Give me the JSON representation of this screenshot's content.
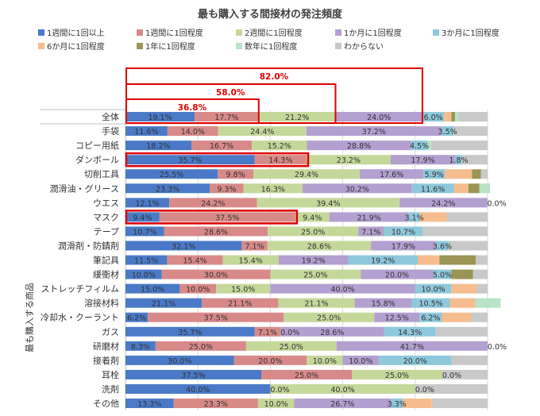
{
  "chart_data": {
    "type": "bar",
    "stacked": true,
    "orientation": "horizontal",
    "title": "最も購入する間接材の発注頻度",
    "ylabel": "最も購入する商品",
    "xlim": [
      0,
      100
    ],
    "grid": true,
    "legend_position": "top",
    "categories": [
      "全体",
      "手袋",
      "コピー用紙",
      "ダンボール",
      "切削工具",
      "潤滑油・グリース",
      "ウエス",
      "マスク",
      "テープ",
      "潤滑剤・防錆剤",
      "筆記具",
      "緩衝材",
      "ストレッチフィルム",
      "溶接材料",
      "冷却水・クーラント",
      "ガス",
      "研磨材",
      "接着剤",
      "耳栓",
      "洗剤",
      "その他"
    ],
    "series": [
      {
        "name": "1週間に1回以上",
        "color": "#4a7ac7",
        "values": [
          19.1,
          11.6,
          18.2,
          35.7,
          25.5,
          23.3,
          12.1,
          9.4,
          10.7,
          32.1,
          11.5,
          10.0,
          15.0,
          21.1,
          6.2,
          35.7,
          8.3,
          30.0,
          37.5,
          40.0,
          13.3
        ]
      },
      {
        "name": "1週間に1回程度",
        "color": "#d88a88",
        "values": [
          17.7,
          14.0,
          16.7,
          14.3,
          9.8,
          9.3,
          24.2,
          37.5,
          28.6,
          7.1,
          15.4,
          30.0,
          10.0,
          21.1,
          37.5,
          7.1,
          25.0,
          20.0,
          25.0,
          0.0,
          23.3
        ]
      },
      {
        "name": "2週間に1回程度",
        "color": "#c4d89a",
        "values": [
          21.2,
          24.4,
          15.2,
          23.2,
          29.4,
          16.3,
          39.4,
          9.4,
          25.0,
          28.6,
          15.4,
          25.0,
          15.0,
          21.1,
          25.0,
          0.0,
          25.0,
          10.0,
          25.0,
          40.0,
          10.0
        ]
      },
      {
        "name": "1か月に1回程度",
        "color": "#b39fd0",
        "values": [
          24.0,
          37.2,
          28.8,
          17.9,
          17.6,
          30.2,
          24.2,
          21.9,
          7.1,
          17.9,
          19.2,
          20.0,
          40.0,
          15.8,
          12.5,
          28.6,
          41.7,
          10.0,
          0.0,
          0.0,
          26.7
        ]
      },
      {
        "name": "3か月に1回程度",
        "color": "#8ec8dc",
        "values": [
          6.0,
          3.5,
          4.5,
          1.8,
          5.9,
          11.6,
          0.0,
          3.1,
          10.7,
          3.6,
          19.2,
          5.0,
          10.0,
          10.5,
          6.2,
          14.3,
          0.0,
          20.0,
          0.0,
          0.0,
          3.3
        ]
      },
      {
        "name": "6か月に1回程度",
        "color": "#f5bd8e",
        "values": [
          2.0,
          0.0,
          0.0,
          0.0,
          7.5,
          4.0,
          0.0,
          7.5,
          0.0,
          0.0,
          6.0,
          0.0,
          7.0,
          7.0,
          8.0,
          0.0,
          0.0,
          0.0,
          0.0,
          0.0,
          8.0
        ]
      },
      {
        "name": "1年に1回程度",
        "color": "#9a9455",
        "values": [
          1.0,
          0.0,
          0.0,
          0.0,
          2.5,
          3.0,
          0.0,
          0.0,
          0.0,
          0.0,
          10.0,
          6.0,
          0.0,
          0.0,
          0.0,
          0.0,
          0.0,
          0.0,
          0.0,
          0.0,
          0.0
        ]
      },
      {
        "name": "数年に1回程度",
        "color": "#b8e3c6",
        "values": [
          1.0,
          0.0,
          1.0,
          0.0,
          0.0,
          3.0,
          0.0,
          0.0,
          0.0,
          0.0,
          0.0,
          0.0,
          0.0,
          7.0,
          0.0,
          0.0,
          0.0,
          0.0,
          0.0,
          0.0,
          0.0
        ]
      },
      {
        "name": "わからない",
        "color": "#c9c9c9",
        "values": [
          8.0,
          9.3,
          15.6,
          7.1,
          1.8,
          0.0,
          0.1,
          11.2,
          17.9,
          10.8,
          3.3,
          4.0,
          3.0,
          0.0,
          4.6,
          14.3,
          0.0,
          10.0,
          12.5,
          20.0,
          15.4
        ]
      }
    ],
    "data_labels": [
      [
        "19.1%",
        "17.7%",
        "21.2%",
        "24.0%",
        "6.0%"
      ],
      [
        "11.6%",
        "14.0%",
        "24.4%",
        "37.2%",
        "3.5%"
      ],
      [
        "18.2%",
        "16.7%",
        "15.2%",
        "28.8%",
        "4.5%"
      ],
      [
        "35.7%",
        "14.3%",
        "23.2%",
        "17.9%",
        "1.8%"
      ],
      [
        "25.5%",
        "9.8%",
        "29.4%",
        "17.6%",
        "5.9%"
      ],
      [
        "23.3%",
        "9.3%",
        "16.3%",
        "30.2%",
        "11.6%"
      ],
      [
        "12.1%",
        "24.2%",
        "39.4%",
        "24.2%",
        "0.0%"
      ],
      [
        "9.4%",
        "37.5%",
        "9.4%",
        "21.9%",
        "3.1%"
      ],
      [
        "10.7%",
        "28.6%",
        "25.0%",
        "7.1%",
        "10.7%"
      ],
      [
        "32.1%",
        "7.1%",
        "28.6%",
        "17.9%",
        "3.6%"
      ],
      [
        "11.5%",
        "15.4%",
        "15.4%",
        "19.2%",
        "19.2%"
      ],
      [
        "10.0%",
        "30.0%",
        "25.0%",
        "20.0%",
        "5.0%"
      ],
      [
        "15.0%",
        "10.0%",
        "15.0%",
        "40.0%",
        "10.0%"
      ],
      [
        "21.1%",
        "21.1%",
        "21.1%",
        "15.8%",
        "10.5%"
      ],
      [
        "6.2%",
        "37.5%",
        "25.0%",
        "12.5%",
        "6.2%"
      ],
      [
        "35.7%",
        "7.1%",
        "0.0%",
        "28.6%",
        "14.3%"
      ],
      [
        "8.3%",
        "25.0%",
        "25.0%",
        "41.7%",
        "0.0%"
      ],
      [
        "30.0%",
        "20.0%",
        "10.0%",
        "10.0%",
        "20.0%"
      ],
      [
        "37.5%",
        "25.0%",
        "25.0%",
        "0.0%",
        ""
      ],
      [
        "40.0%",
        "0.0%",
        "40.0%",
        "0.0%",
        ""
      ],
      [
        "13.3%",
        "23.3%",
        "10.0%",
        "26.7%",
        "3.3%"
      ]
    ],
    "annotations": [
      {
        "label": "82.0%",
        "value": 82.0,
        "color": "#e00000"
      },
      {
        "label": "58.0%",
        "value": 58.0,
        "color": "#e00000"
      },
      {
        "label": "36.8%",
        "value": 36.8,
        "color": "#e00000"
      }
    ],
    "highlighted_rows": [
      {
        "category": "ダンボール",
        "value": 50.0,
        "color": "#e00000"
      },
      {
        "category": "マスク",
        "value": 46.9,
        "color": "#e00000"
      }
    ]
  }
}
